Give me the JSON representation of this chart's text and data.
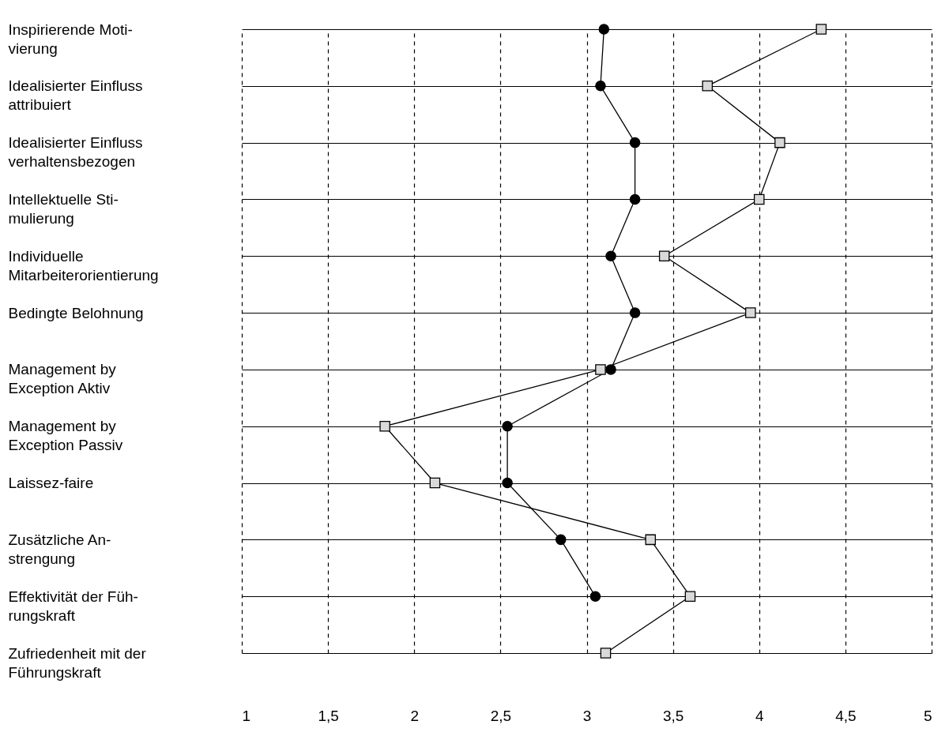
{
  "chart_data": {
    "type": "line",
    "orientation": "horizontal",
    "categories": [
      "Inspirierende Moti-\nvierung",
      "Idealisierter Einfluss\nattribuiert",
      "Idealisierter Einfluss\nverhaltensbezogen",
      "Intellektuelle Sti-\nmulierung",
      "Individuelle\nMitarbeiterorientierung",
      "Bedingte Belohnung",
      "Management by\nException Aktiv",
      "Management by\nException Passiv",
      "Laissez-faire",
      "Zusätzliche An-\nstrengung",
      "Effektivität der Füh-\nrungskraft",
      "Zufriedenheit mit der\nFührungskraft"
    ],
    "series": [
      {
        "color": "#000000",
        "marker": "circle",
        "values": [
          3.1,
          3.08,
          3.28,
          3.28,
          3.14,
          3.28,
          3.14,
          2.54,
          2.54,
          2.85,
          3.05,
          null
        ]
      },
      {
        "color": "#d9d9d9",
        "marker": "square",
        "values": [
          4.36,
          3.7,
          4.12,
          4.0,
          3.45,
          3.95,
          3.08,
          1.83,
          2.12,
          3.37,
          3.6,
          3.11
        ]
      }
    ],
    "xlim": [
      1,
      5
    ],
    "xticks": [
      1,
      {
        "value": 1.5,
        "label": "1,5"
      },
      2,
      {
        "value": 2.5,
        "label": "2,5"
      },
      3,
      {
        "value": 3.5,
        "label": "3,5"
      },
      4,
      {
        "value": 4.5,
        "label": "4,5"
      },
      5
    ],
    "grid": true,
    "line_style": "solid"
  }
}
